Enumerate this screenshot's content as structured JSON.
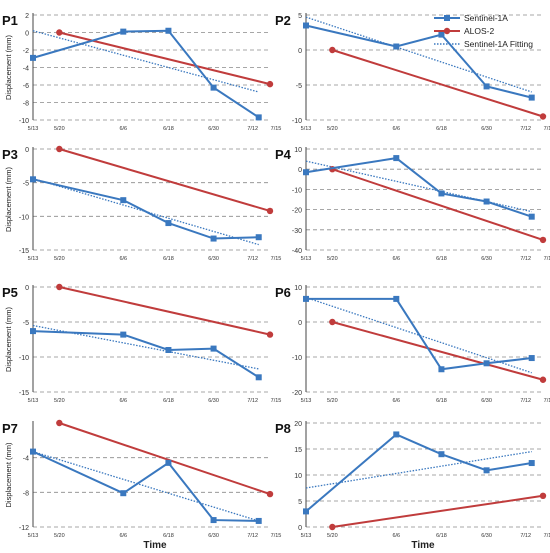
{
  "figure": {
    "xlabel": "Time",
    "ylabel": "Displacement (mm)",
    "legend": [
      "Sentinel-1A",
      "ALOS-2",
      "Sentinel-1A Fitting"
    ],
    "colors": {
      "sentinel": "#3a78bf",
      "alos": "#c03c3c",
      "fit": "#3a78bf",
      "grid": "#8a8a8a"
    }
  },
  "chart_data": [
    {
      "type": "line",
      "title": "P1",
      "x_ticks": [
        "5/13",
        "5/20",
        "6/6",
        "6/18",
        "6/30",
        "7/12",
        "7/15"
      ],
      "ylim": [
        -10,
        2
      ],
      "y_ticks": [
        2,
        0,
        -2,
        -4,
        -6,
        -8,
        -10
      ],
      "series": [
        {
          "name": "Sentinel-1A",
          "x": [
            "5/13",
            "6/6",
            "6/18",
            "6/30",
            "7/12"
          ],
          "values": [
            -2.9,
            0.1,
            0.2,
            -6.3,
            -9.7
          ]
        },
        {
          "name": "ALOS-2",
          "x": [
            "5/20",
            "7/15"
          ],
          "values": [
            0.0,
            -5.9
          ]
        },
        {
          "name": "Sentinel-1A Fitting",
          "x": [
            "5/13",
            "7/12"
          ],
          "values": [
            0.2,
            -6.8
          ]
        }
      ]
    },
    {
      "type": "line",
      "title": "P2",
      "x_ticks": [
        "5/13",
        "5/20",
        "6/6",
        "6/18",
        "6/30",
        "7/12",
        "7/15"
      ],
      "ylim": [
        -10,
        5
      ],
      "y_ticks": [
        5,
        0,
        -5,
        -10
      ],
      "series": [
        {
          "name": "Sentinel-1A",
          "x": [
            "5/13",
            "6/6",
            "6/18",
            "6/30",
            "7/12"
          ],
          "values": [
            3.5,
            0.5,
            2.2,
            -5.2,
            -6.8
          ]
        },
        {
          "name": "ALOS-2",
          "x": [
            "5/20",
            "7/15"
          ],
          "values": [
            0.0,
            -9.5
          ]
        },
        {
          "name": "Sentinel-1A Fitting",
          "x": [
            "5/13",
            "7/12"
          ],
          "values": [
            4.7,
            -6.0
          ]
        }
      ]
    },
    {
      "type": "line",
      "title": "P3",
      "x_ticks": [
        "5/13",
        "5/20",
        "6/6",
        "6/18",
        "6/30",
        "7/12",
        "7/15"
      ],
      "ylim": [
        -15,
        0
      ],
      "y_ticks": [
        0,
        -5,
        -10,
        -15
      ],
      "series": [
        {
          "name": "Sentinel-1A",
          "x": [
            "5/13",
            "6/6",
            "6/18",
            "6/30",
            "7/12"
          ],
          "values": [
            -4.5,
            -7.6,
            -11.0,
            -13.3,
            -13.1
          ]
        },
        {
          "name": "ALOS-2",
          "x": [
            "5/20",
            "7/15"
          ],
          "values": [
            0.0,
            -9.2
          ]
        },
        {
          "name": "Sentinel-1A Fitting",
          "x": [
            "5/13",
            "7/12"
          ],
          "values": [
            -4.4,
            -14.2
          ]
        }
      ]
    },
    {
      "type": "line",
      "title": "P4",
      "x_ticks": [
        "5/13",
        "5/20",
        "6/6",
        "6/18",
        "6/30",
        "7/12",
        "7/15"
      ],
      "ylim": [
        -40,
        10
      ],
      "y_ticks": [
        10,
        0,
        -10,
        -20,
        -30,
        -40
      ],
      "series": [
        {
          "name": "Sentinel-1A",
          "x": [
            "5/13",
            "6/6",
            "6/18",
            "6/30",
            "7/12"
          ],
          "values": [
            -1.5,
            5.5,
            -12.0,
            -16.0,
            -23.5
          ]
        },
        {
          "name": "ALOS-2",
          "x": [
            "5/20",
            "7/15"
          ],
          "values": [
            0.0,
            -35.0
          ]
        },
        {
          "name": "Sentinel-1A Fitting",
          "x": [
            "5/13",
            "7/12"
          ],
          "values": [
            4.0,
            -21.0
          ]
        }
      ]
    },
    {
      "type": "line",
      "title": "P5",
      "x_ticks": [
        "5/13",
        "5/20",
        "6/6",
        "6/18",
        "6/30",
        "7/12",
        "7/15"
      ],
      "ylim": [
        -15,
        0
      ],
      "y_ticks": [
        0,
        -5,
        -10,
        -15
      ],
      "series": [
        {
          "name": "Sentinel-1A",
          "x": [
            "5/13",
            "6/6",
            "6/18",
            "6/30",
            "7/12"
          ],
          "values": [
            -6.3,
            -6.8,
            -9.0,
            -8.8,
            -12.9
          ]
        },
        {
          "name": "ALOS-2",
          "x": [
            "5/20",
            "7/15"
          ],
          "values": [
            0.0,
            -6.8
          ]
        },
        {
          "name": "Sentinel-1A Fitting",
          "x": [
            "5/13",
            "7/12"
          ],
          "values": [
            -5.5,
            -11.7
          ]
        }
      ]
    },
    {
      "type": "line",
      "title": "P6",
      "x_ticks": [
        "5/13",
        "5/20",
        "6/6",
        "6/18",
        "6/30",
        "7/12",
        "7/15"
      ],
      "ylim": [
        -20,
        10
      ],
      "y_ticks": [
        10,
        0,
        -10,
        -20
      ],
      "series": [
        {
          "name": "Sentinel-1A",
          "x": [
            "5/13",
            "6/6",
            "6/18",
            "6/30",
            "7/12"
          ],
          "values": [
            6.6,
            6.6,
            -13.5,
            -11.8,
            -10.3
          ]
        },
        {
          "name": "ALOS-2",
          "x": [
            "5/20",
            "7/15"
          ],
          "values": [
            0.0,
            -16.5
          ]
        },
        {
          "name": "Sentinel-1A Fitting",
          "x": [
            "5/13",
            "7/12"
          ],
          "values": [
            7.0,
            -14.5
          ]
        }
      ]
    },
    {
      "type": "line",
      "title": "P7",
      "x_ticks": [
        "5/13",
        "5/20",
        "6/6",
        "6/18",
        "6/30",
        "7/12",
        "7/15"
      ],
      "ylim": [
        -12,
        0
      ],
      "y_ticks": [
        -4,
        -8,
        -12
      ],
      "series": [
        {
          "name": "Sentinel-1A",
          "x": [
            "5/13",
            "6/6",
            "6/18",
            "6/30",
            "7/12"
          ],
          "values": [
            -3.3,
            -8.1,
            -4.6,
            -11.2,
            -11.3
          ]
        },
        {
          "name": "ALOS-2",
          "x": [
            "5/20",
            "7/15"
          ],
          "values": [
            0.0,
            -8.2
          ]
        },
        {
          "name": "Sentinel-1A Fitting",
          "x": [
            "5/13",
            "7/12"
          ],
          "values": [
            -3.3,
            -11.3
          ]
        }
      ]
    },
    {
      "type": "line",
      "title": "P8",
      "x_ticks": [
        "5/13",
        "5/20",
        "6/6",
        "6/18",
        "6/30",
        "7/12",
        "7/15"
      ],
      "ylim": [
        0,
        20
      ],
      "y_ticks": [
        20,
        15,
        10,
        5,
        0
      ],
      "series": [
        {
          "name": "Sentinel-1A",
          "x": [
            "5/13",
            "6/6",
            "6/18",
            "6/30",
            "7/12"
          ],
          "values": [
            3.0,
            17.8,
            14.0,
            10.9,
            12.3
          ]
        },
        {
          "name": "ALOS-2",
          "x": [
            "5/20",
            "7/15"
          ],
          "values": [
            0.0,
            6.0
          ]
        },
        {
          "name": "Sentinel-1A Fitting",
          "x": [
            "5/13",
            "7/12"
          ],
          "values": [
            7.5,
            14.5
          ]
        }
      ]
    }
  ]
}
